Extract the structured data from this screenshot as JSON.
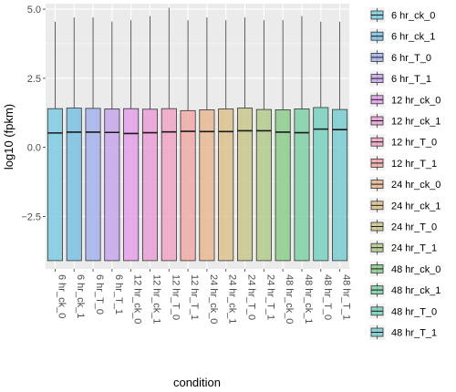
{
  "chart_data": {
    "type": "boxplot",
    "xlabel": "condition",
    "ylabel": "log10 (fpkm)",
    "ylim": [
      -4.4,
      5.2
    ],
    "y_ticks": [
      -2.5,
      0.0,
      2.5,
      5.0
    ],
    "y_tick_labels": [
      "−2.5",
      "0.0",
      "2.5",
      "5.0"
    ],
    "grid": true,
    "legend_position": "right",
    "categories": [
      "6 hr_ck_0",
      "6 hr_ck_1",
      "6 hr_T_0",
      "6 hr_T_1",
      "12 hr_ck_0",
      "12 hr_ck_1",
      "12 hr_T_0",
      "12 hr_T_1",
      "24 hr_ck_0",
      "24 hr_ck_1",
      "24 hr_T_0",
      "24 hr_T_1",
      "48 hr_ck_0",
      "48 hr_ck_1",
      "48 hr_T_0",
      "48 hr_T_1"
    ],
    "colors": [
      "#7ecae3",
      "#7bbfe2",
      "#a3b2ea",
      "#c6a6ea",
      "#e3a0e7",
      "#ea9fd6",
      "#f0a4c4",
      "#f0aaa8",
      "#e8b893",
      "#dcc18d",
      "#c9c78c",
      "#b3ca8c",
      "#8ccd8d",
      "#7fcfa6",
      "#79d0be",
      "#7acdd0"
    ],
    "boxes": [
      {
        "min": -4.1,
        "q1": -4.1,
        "median": 0.52,
        "q3": 1.4,
        "max": 4.55
      },
      {
        "min": -4.1,
        "q1": -4.1,
        "median": 0.55,
        "q3": 1.42,
        "max": 4.7
      },
      {
        "min": -4.1,
        "q1": -4.1,
        "median": 0.55,
        "q3": 1.41,
        "max": 4.7
      },
      {
        "min": -4.1,
        "q1": -4.1,
        "median": 0.54,
        "q3": 1.39,
        "max": 4.55
      },
      {
        "min": -4.1,
        "q1": -4.1,
        "median": 0.5,
        "q3": 1.4,
        "max": 4.6
      },
      {
        "min": -4.1,
        "q1": -4.1,
        "median": 0.53,
        "q3": 1.38,
        "max": 4.75
      },
      {
        "min": -4.1,
        "q1": -4.1,
        "median": 0.56,
        "q3": 1.4,
        "max": 5.05
      },
      {
        "min": -4.1,
        "q1": -4.1,
        "median": 0.58,
        "q3": 1.33,
        "max": 4.6
      },
      {
        "min": -4.1,
        "q1": -4.1,
        "median": 0.57,
        "q3": 1.36,
        "max": 4.7
      },
      {
        "min": -4.1,
        "q1": -4.1,
        "median": 0.57,
        "q3": 1.39,
        "max": 4.6
      },
      {
        "min": -4.1,
        "q1": -4.1,
        "median": 0.6,
        "q3": 1.42,
        "max": 4.7
      },
      {
        "min": -4.1,
        "q1": -4.1,
        "median": 0.6,
        "q3": 1.37,
        "max": 4.6
      },
      {
        "min": -4.1,
        "q1": -4.1,
        "median": 0.55,
        "q3": 1.36,
        "max": 4.6
      },
      {
        "min": -4.1,
        "q1": -4.1,
        "median": 0.53,
        "q3": 1.39,
        "max": 4.75
      },
      {
        "min": -4.1,
        "q1": -4.1,
        "median": 0.66,
        "q3": 1.44,
        "max": 4.55
      },
      {
        "min": -4.1,
        "q1": -4.1,
        "median": 0.64,
        "q3": 1.37,
        "max": 4.55
      }
    ]
  }
}
